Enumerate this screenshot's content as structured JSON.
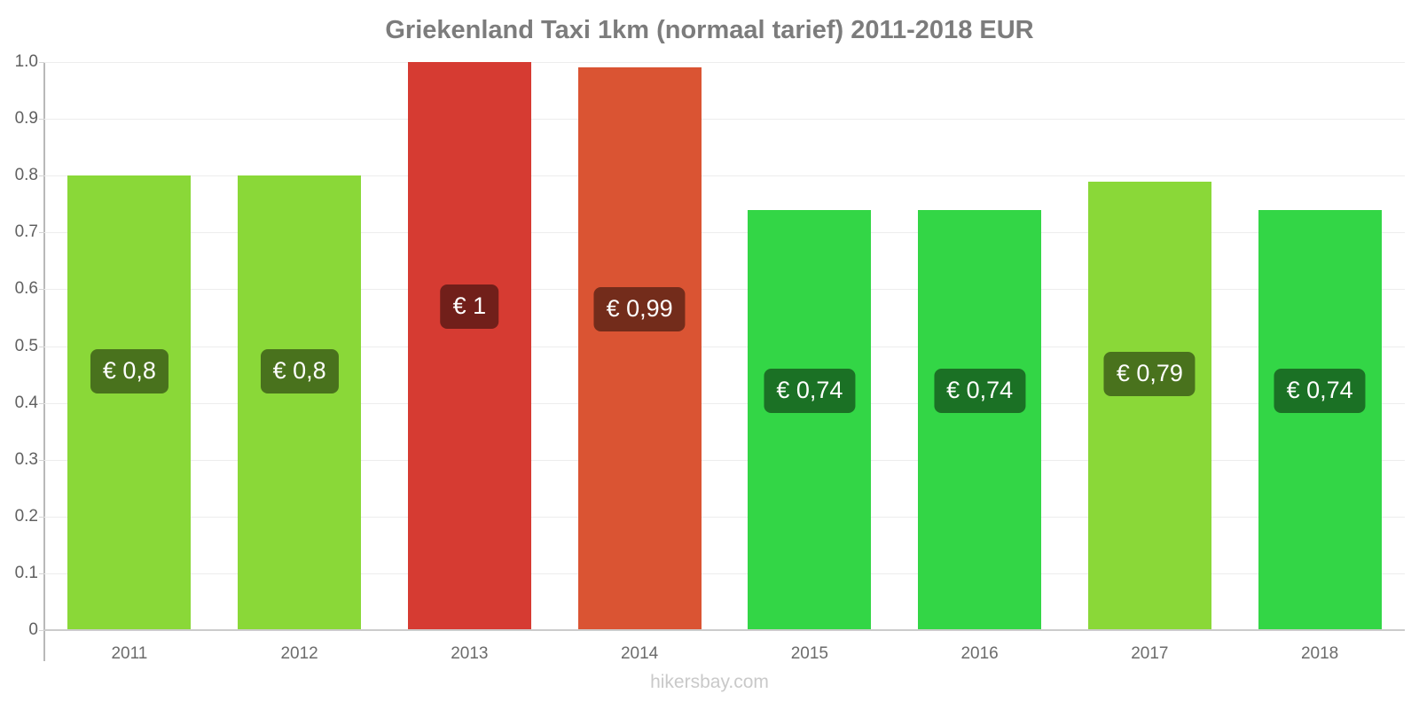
{
  "chart_data": {
    "type": "bar",
    "title": "Griekenland Taxi 1km (normaal tarief) 2011-2018 EUR",
    "categories": [
      "2011",
      "2012",
      "2013",
      "2014",
      "2015",
      "2016",
      "2017",
      "2018"
    ],
    "values": [
      0.8,
      0.8,
      1.0,
      0.99,
      0.74,
      0.74,
      0.79,
      0.74
    ],
    "bar_labels": [
      "€ 0,8",
      "€ 0,8",
      "€ 1",
      "€ 0,99",
      "€ 0,74",
      "€ 0,74",
      "€ 0,79",
      "€ 0,74"
    ],
    "bar_colors": [
      "#8AD838",
      "#8AD838",
      "#D63B32",
      "#DA5433",
      "#33D646",
      "#33D646",
      "#8AD838",
      "#33D646"
    ],
    "ylim": [
      0,
      1
    ],
    "yticks": [
      {
        "value": 0,
        "label": "0"
      },
      {
        "value": 0.1,
        "label": "0.1"
      },
      {
        "value": 0.2,
        "label": "0.2"
      },
      {
        "value": 0.3,
        "label": "0.3"
      },
      {
        "value": 0.4,
        "label": "0.4"
      },
      {
        "value": 0.5,
        "label": "0.5"
      },
      {
        "value": 0.6,
        "label": "0.6"
      },
      {
        "value": 0.7,
        "label": "0.7"
      },
      {
        "value": 0.8,
        "label": "0.8"
      },
      {
        "value": 0.9,
        "label": "0.9"
      },
      {
        "value": 1.0,
        "label": "1.0"
      }
    ],
    "grid": true,
    "legend": false,
    "xlabel": "",
    "ylabel": ""
  },
  "footer": {
    "watermark": "hikersbay.com"
  },
  "colors": {
    "title": "#7c7c7c",
    "axis_line": "#b9b9b9",
    "baseline": "#cccccc",
    "gridline": "#ededed",
    "tick_mark": "#d5d5d5",
    "y_tick_label": "#606060",
    "x_tick_label": "#6b6b6b",
    "badge_bg": "rgba(0,0,0,0.47)",
    "badge_text": "#ffffff",
    "watermark": "#c9c9c9"
  }
}
